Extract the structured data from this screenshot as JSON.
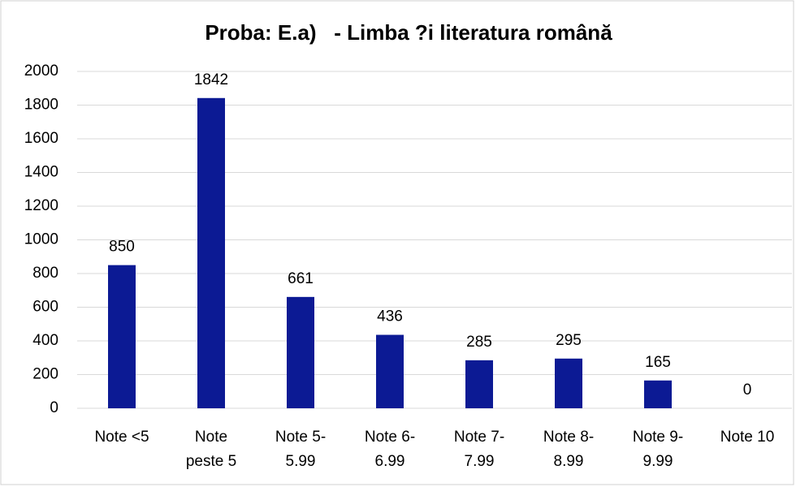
{
  "chart_data": {
    "type": "bar",
    "title": "Proba: E.a)   - Limba ?i literatura română",
    "categories": [
      "Note <5",
      "Note\npeste 5",
      "Note 5-\n5.99",
      "Note 6-\n6.99",
      "Note 7-\n7.99",
      "Note 8-\n8.99",
      "Note 9-\n9.99",
      "Note 10"
    ],
    "values": [
      850,
      1842,
      661,
      436,
      285,
      295,
      165,
      0
    ],
    "color": "#0c1a94",
    "ylim": [
      0,
      2000
    ],
    "yticks": [
      0,
      200,
      400,
      600,
      800,
      1000,
      1200,
      1400,
      1600,
      1800,
      2000
    ],
    "grid": true
  }
}
